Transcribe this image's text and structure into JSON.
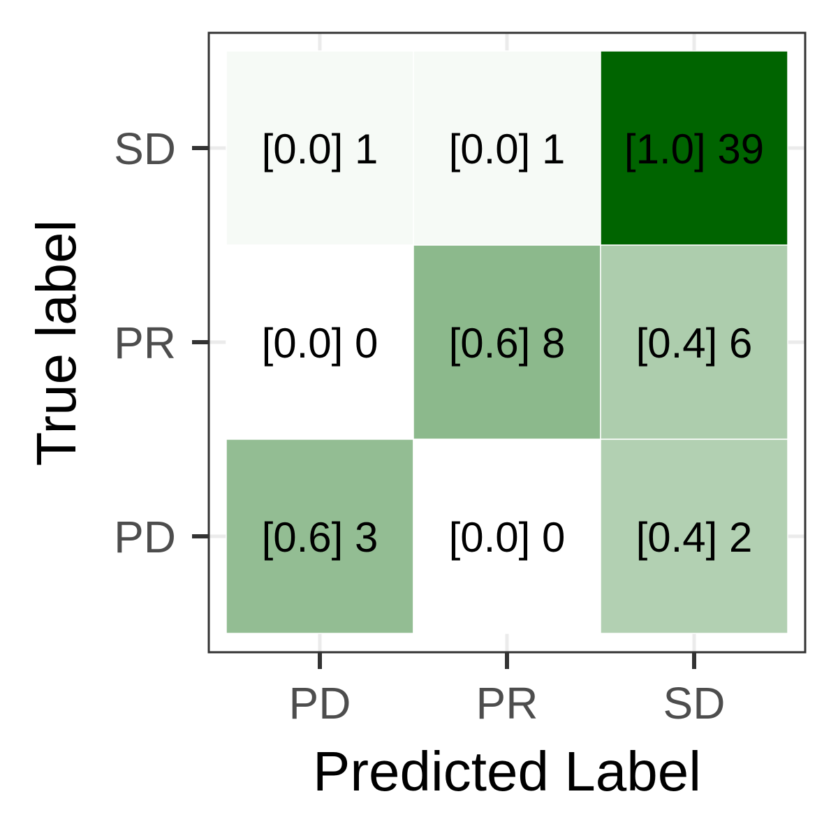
{
  "chart_data": {
    "type": "heatmap",
    "xlabel": "Predicted Label",
    "ylabel": "True label",
    "x_categories": [
      "PD",
      "PR",
      "SD"
    ],
    "y_categories": [
      "PD",
      "PR",
      "SD"
    ],
    "cells": [
      {
        "true": "SD",
        "pred": "PD",
        "proportion": 0.0,
        "count": 1,
        "label": "[0.0] 1"
      },
      {
        "true": "SD",
        "pred": "PR",
        "proportion": 0.0,
        "count": 1,
        "label": "[0.0] 1"
      },
      {
        "true": "SD",
        "pred": "SD",
        "proportion": 1.0,
        "count": 39,
        "label": "[1.0] 39"
      },
      {
        "true": "PR",
        "pred": "PD",
        "proportion": 0.0,
        "count": 0,
        "label": "[0.0] 0"
      },
      {
        "true": "PR",
        "pred": "PR",
        "proportion": 0.6,
        "count": 8,
        "label": "[0.6] 8"
      },
      {
        "true": "PR",
        "pred": "SD",
        "proportion": 0.4,
        "count": 6,
        "label": "[0.4] 6"
      },
      {
        "true": "PD",
        "pred": "PD",
        "proportion": 0.6,
        "count": 3,
        "label": "[0.6] 3"
      },
      {
        "true": "PD",
        "pred": "PR",
        "proportion": 0.0,
        "count": 0,
        "label": "[0.0] 0"
      },
      {
        "true": "PD",
        "pred": "SD",
        "proportion": 0.4,
        "count": 2,
        "label": "[0.4] 2"
      }
    ],
    "color_low": "#ffffff",
    "color_high": "#006400",
    "grid": true,
    "legend": "none"
  }
}
